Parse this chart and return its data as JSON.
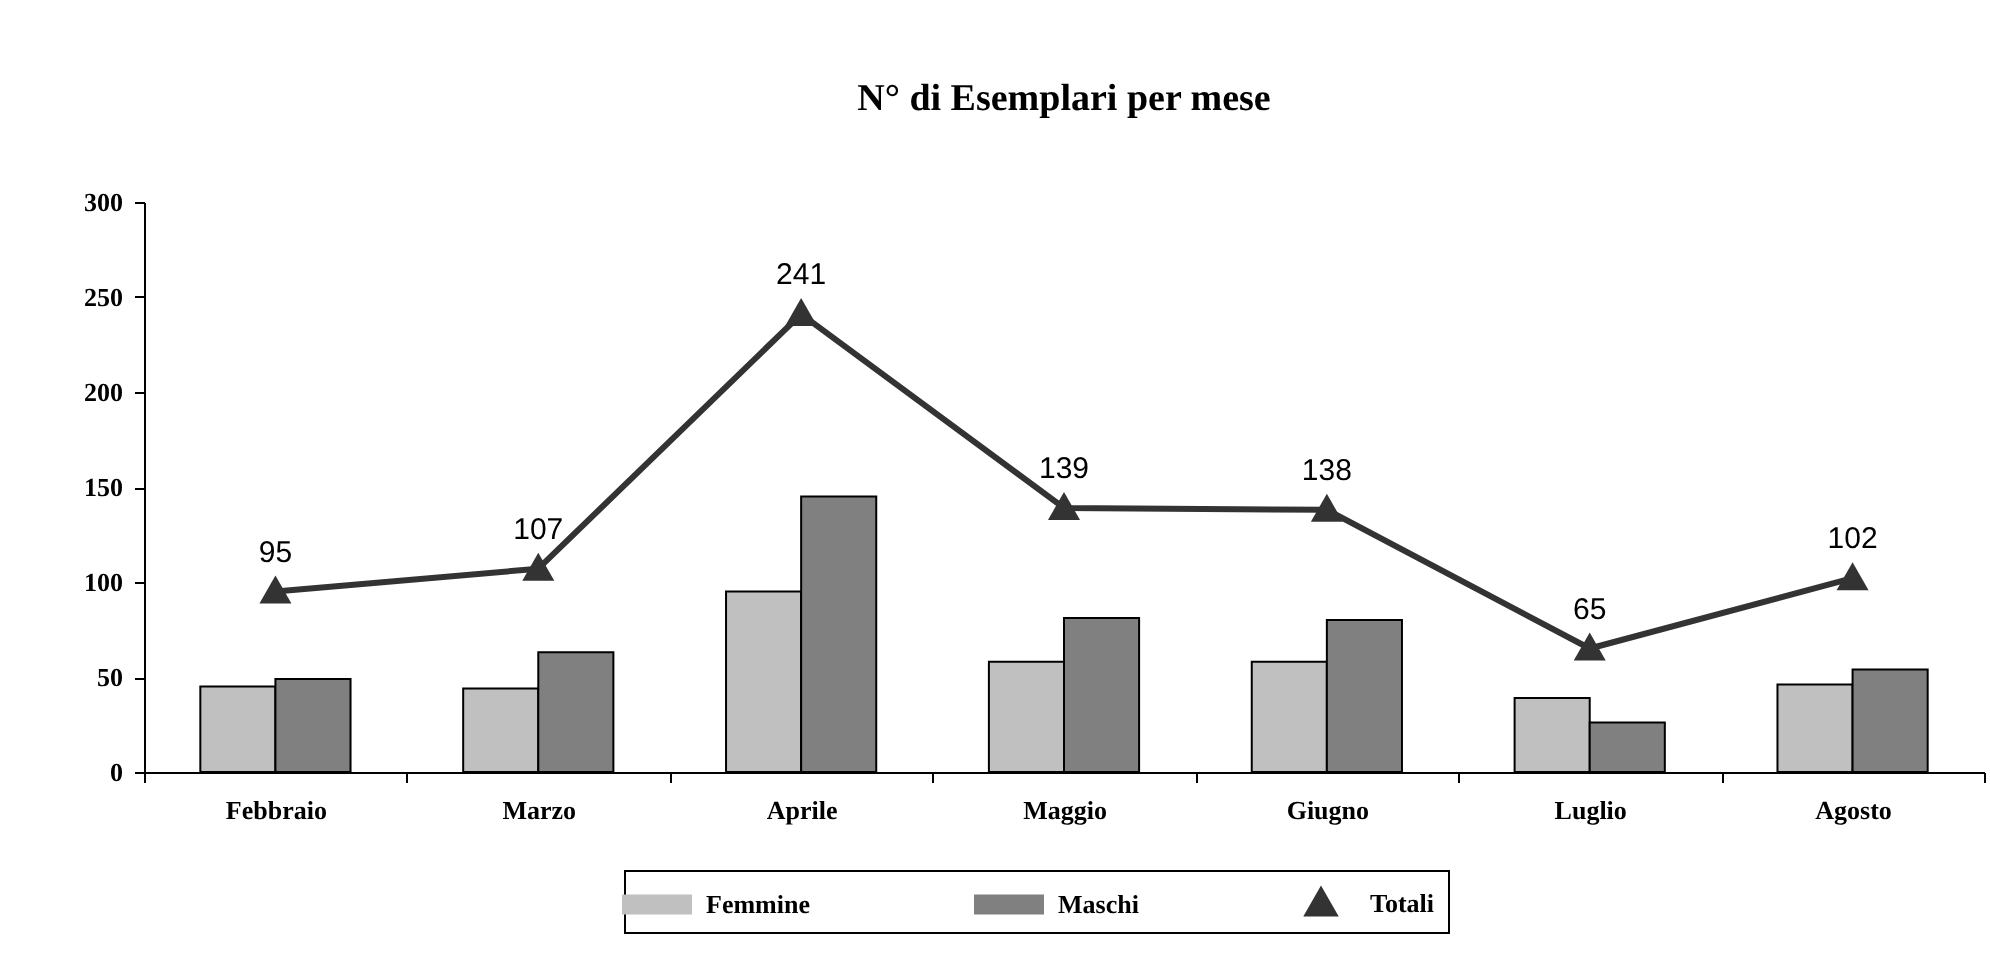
{
  "chart_data": {
    "type": "bar",
    "title": "N° di Esemplari per mese",
    "categories": [
      "Febbraio",
      "Marzo",
      "Aprile",
      "Maggio",
      "Giugno",
      "Luglio",
      "Agosto"
    ],
    "series": [
      {
        "name": "Femmine",
        "color": "#c0c0c0",
        "values": [
          45,
          44,
          95,
          58,
          58,
          39,
          46
        ]
      },
      {
        "name": "Maschi",
        "color": "#808080",
        "values": [
          49,
          63,
          145,
          81,
          80,
          26,
          54
        ]
      },
      {
        "name": "Totali",
        "type": "line",
        "color": "#333333",
        "marker": "triangle",
        "values": [
          95,
          107,
          241,
          139,
          138,
          65,
          102
        ],
        "value_labels": [
          "95",
          "107",
          "241",
          "139",
          "138",
          "65",
          "102"
        ]
      }
    ],
    "ylim": [
      0,
      300
    ],
    "yticks": [
      0,
      50,
      100,
      150,
      200,
      250,
      300
    ],
    "grid": false,
    "legend": "bottom"
  }
}
